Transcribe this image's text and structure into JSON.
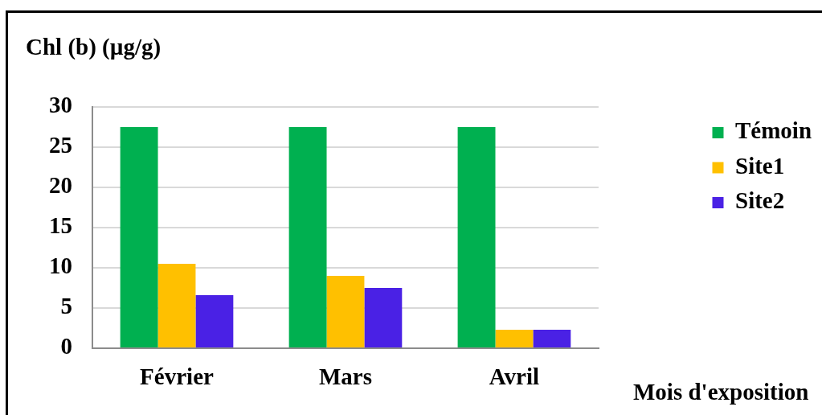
{
  "chart_data": {
    "type": "bar",
    "ylabel": "Chl (b) (µg/g)",
    "xlabel": "Mois d'exposition",
    "categories": [
      "Février",
      "Mars",
      "Avril"
    ],
    "series": [
      {
        "name": "Témoin",
        "color": "#00b050",
        "values": [
          27.5,
          27.5,
          27.5
        ]
      },
      {
        "name": "Site1",
        "color": "#ffc000",
        "values": [
          10.5,
          9,
          2.3
        ]
      },
      {
        "name": "Site2",
        "color": "#4a21e5",
        "values": [
          6.6,
          7.5,
          2.3
        ]
      }
    ],
    "ylim": [
      0,
      30
    ],
    "yticks": [
      0,
      5,
      10,
      15,
      20,
      25,
      30
    ],
    "grid": "y",
    "legend": "top right"
  }
}
